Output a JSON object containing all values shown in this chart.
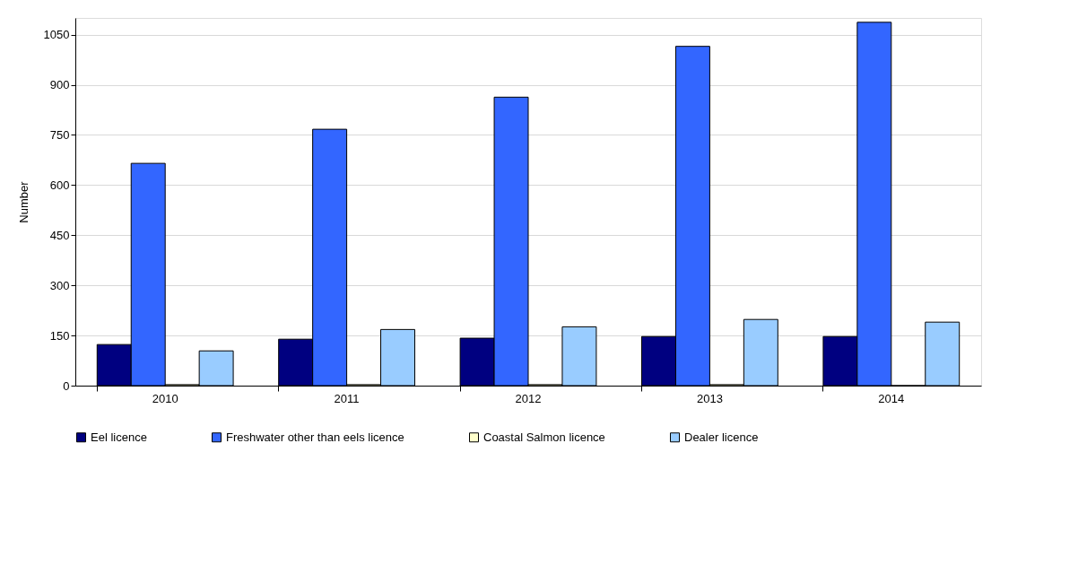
{
  "chart_data": {
    "type": "bar",
    "ylabel": "Number",
    "categories": [
      "2010",
      "2011",
      "2012",
      "2013",
      "2014"
    ],
    "series": [
      {
        "name": "Eel licence",
        "color": "#000080",
        "values": [
          123,
          139,
          142,
          147,
          147
        ]
      },
      {
        "name": "Freshwater other than eels licence",
        "color": "#3366ff",
        "values": [
          665,
          767,
          863,
          1015,
          1087
        ]
      },
      {
        "name": "Coastal Salmon licence",
        "color": "#ffffcc",
        "values": [
          3,
          3,
          3,
          3,
          0
        ]
      },
      {
        "name": "Dealer licence",
        "color": "#99ccff",
        "values": [
          104,
          168,
          176,
          198,
          190
        ]
      }
    ],
    "ylim": [
      0,
      1100
    ],
    "yticks": [
      0,
      150,
      300,
      450,
      600,
      750,
      900,
      1050
    ],
    "grid": "y",
    "legend": "bottom"
  }
}
